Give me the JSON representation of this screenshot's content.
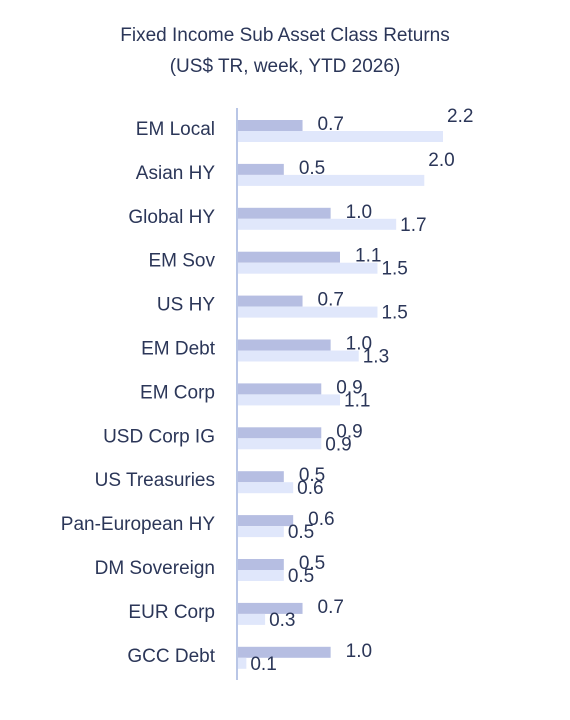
{
  "chart_data": {
    "type": "bar",
    "orientation": "horizontal",
    "title": "Fixed Income Sub Asset Class Returns",
    "subtitle": "(US$ TR, week, YTD 2026)",
    "categories": [
      "EM Local",
      "Asian HY",
      "Global HY",
      "EM Sov",
      "US HY",
      "EM Debt",
      "EM Corp",
      "USD Corp IG",
      "US Treasuries",
      "Pan-European HY",
      "DM Sovereign",
      "EUR Corp",
      "GCC Debt"
    ],
    "series": [
      {
        "color": "#b6bee2",
        "values": [
          0.7,
          0.5,
          1.0,
          1.1,
          0.7,
          1.0,
          0.9,
          0.9,
          0.5,
          0.6,
          0.5,
          0.7,
          1.0
        ],
        "value_labels": [
          "0.7",
          "0.5",
          "1.0",
          "1.1",
          "0.7",
          "1.0",
          "0.9",
          "0.9",
          "0.5",
          "0.6",
          "0.5",
          "0.7",
          "1.0"
        ]
      },
      {
        "color": "#e0e7fb",
        "values": [
          2.2,
          2.0,
          1.7,
          1.5,
          1.5,
          1.3,
          1.1,
          0.9,
          0.6,
          0.5,
          0.5,
          0.3,
          0.1
        ],
        "value_labels": [
          "2.2",
          "2.0",
          "1.7",
          "1.5",
          "1.5",
          "1.3",
          "1.1",
          "0.9",
          "0.6",
          "0.5",
          "0.5",
          "0.3",
          "0.1"
        ]
      }
    ]
  }
}
